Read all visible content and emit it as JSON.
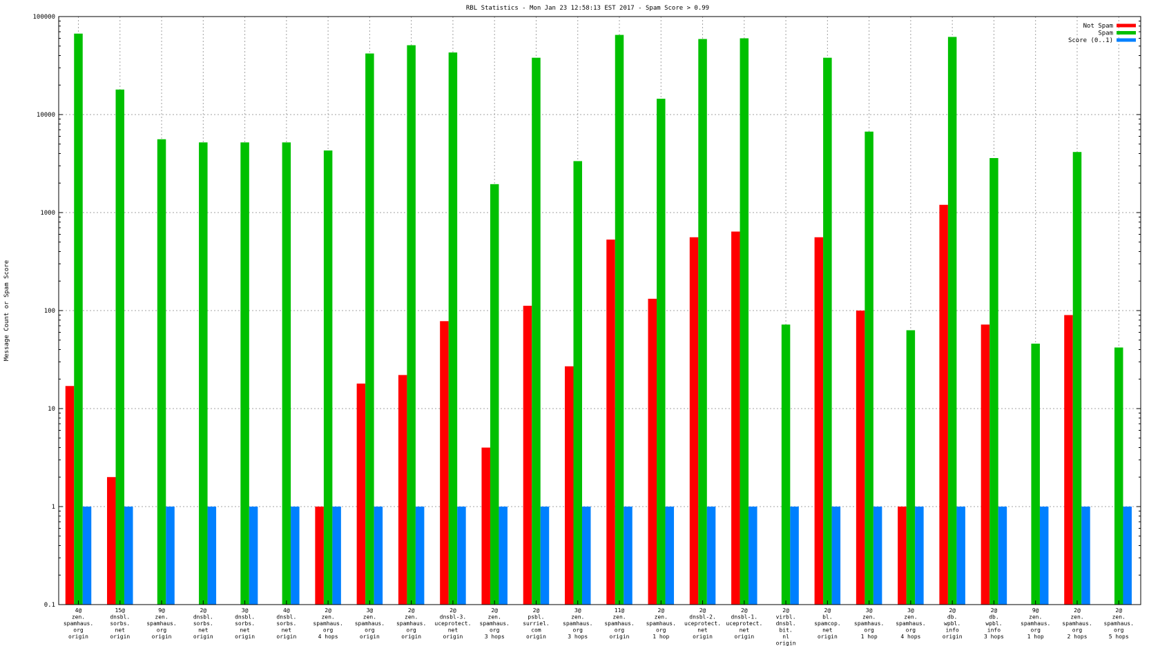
{
  "chart_data": {
    "type": "bar",
    "title": "RBL Statistics - Mon Jan 23 12:58:13 EST 2017 - Spam Score > 0.99",
    "xlabel": "",
    "ylabel": "Message Count or Spam Score",
    "y_scale": "log",
    "ylim": [
      0.1,
      100000
    ],
    "y_ticks": [
      {
        "value": 0.1,
        "label": "0.1"
      },
      {
        "value": 1,
        "label": "1"
      },
      {
        "value": 10,
        "label": "10"
      },
      {
        "value": 100,
        "label": "100"
      },
      {
        "value": 1000,
        "label": "1000"
      },
      {
        "value": 10000,
        "label": "10000"
      },
      {
        "value": 100000,
        "label": "100000"
      }
    ],
    "grid": true,
    "legend_position": "top-right",
    "categories": [
      [
        "4@",
        "zen.",
        "spamhaus.",
        "org",
        "origin"
      ],
      [
        "15@",
        "dnsbl.",
        "sorbs.",
        "net",
        "origin"
      ],
      [
        "9@",
        "zen.",
        "spamhaus.",
        "org",
        "origin"
      ],
      [
        "2@",
        "dnsbl.",
        "sorbs.",
        "net",
        "origin"
      ],
      [
        "3@",
        "dnsbl.",
        "sorbs.",
        "net",
        "origin"
      ],
      [
        "4@",
        "dnsbl.",
        "sorbs.",
        "net",
        "origin"
      ],
      [
        "2@",
        "zen.",
        "spamhaus.",
        "org",
        "4 hops"
      ],
      [
        "3@",
        "zen.",
        "spamhaus.",
        "org",
        "origin"
      ],
      [
        "2@",
        "zen.",
        "spamhaus.",
        "org",
        "origin"
      ],
      [
        "2@",
        "dnsbl-3.",
        "uceprotect.",
        "net",
        "origin"
      ],
      [
        "2@",
        "zen.",
        "spamhaus.",
        "org",
        "3 hops"
      ],
      [
        "2@",
        "psbl.",
        "surriel.",
        "com",
        "origin"
      ],
      [
        "3@",
        "zen.",
        "spamhaus.",
        "org",
        "3 hops"
      ],
      [
        "11@",
        "zen.",
        "spamhaus.",
        "org",
        "origin"
      ],
      [
        "2@",
        "zen.",
        "spamhaus.",
        "org",
        "1 hop"
      ],
      [
        "2@",
        "dnsbl-2.",
        "uceprotect.",
        "net",
        "origin"
      ],
      [
        "2@",
        "dnsbl-1.",
        "uceprotect.",
        "net",
        "origin"
      ],
      [
        "2@",
        "virbl.",
        "dnsbl.",
        "bit.",
        "nl",
        "origin"
      ],
      [
        "2@",
        "bl.",
        "spamcop.",
        "net",
        "origin"
      ],
      [
        "3@",
        "zen.",
        "spamhaus.",
        "org",
        "1 hop"
      ],
      [
        "3@",
        "zen.",
        "spamhaus.",
        "org",
        "4 hops"
      ],
      [
        "2@",
        "db.",
        "wpbl.",
        "info",
        "origin"
      ],
      [
        "2@",
        "db.",
        "wpbl.",
        "info",
        "3 hops"
      ],
      [
        "9@",
        "zen.",
        "spamhaus.",
        "org",
        "1 hop"
      ],
      [
        "2@",
        "zen.",
        "spamhaus.",
        "org",
        "2 hops"
      ],
      [
        "2@",
        "zen.",
        "spamhaus.",
        "org",
        "5 hops"
      ]
    ],
    "series": [
      {
        "name": "Not Spam",
        "color": "#ff0000",
        "values": [
          17,
          2,
          null,
          null,
          null,
          null,
          1,
          18,
          22,
          78,
          4,
          112,
          27,
          530,
          132,
          560,
          640,
          null,
          560,
          100,
          1,
          1200,
          72,
          null,
          90,
          null
        ]
      },
      {
        "name": "Spam",
        "color": "#00c000",
        "values": [
          67000,
          18000,
          5600,
          5200,
          5200,
          5200,
          4300,
          42000,
          51000,
          43000,
          1950,
          38000,
          3350,
          65000,
          14500,
          59000,
          60000,
          72,
          38000,
          6700,
          63,
          62000,
          3600,
          46,
          4150,
          42
        ]
      },
      {
        "name": "Score (0..1)",
        "color": "#0080ff",
        "values": [
          1,
          1,
          1,
          1,
          1,
          1,
          1,
          1,
          1,
          1,
          1,
          1,
          1,
          1,
          1,
          1,
          1,
          1,
          1,
          1,
          1,
          1,
          1,
          1,
          1,
          1
        ]
      }
    ]
  }
}
